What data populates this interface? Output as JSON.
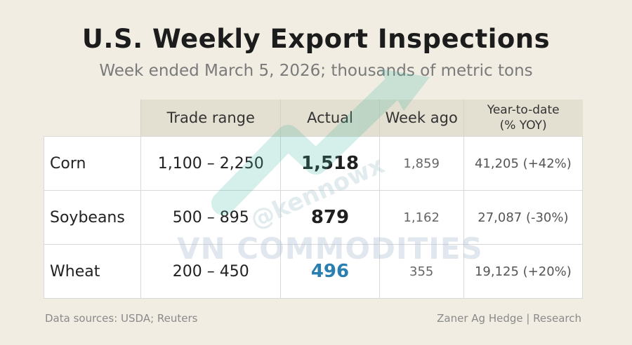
{
  "header": {
    "title": "U.S. Weekly Export Inspections",
    "subtitle": "Week ended March 5, 2026; thousands of metric tons"
  },
  "table": {
    "columns": [
      "",
      "Trade range",
      "Actual",
      "Week ago",
      "Year-to-date",
      "(% YOY)"
    ],
    "rows": [
      {
        "commodity": "Corn",
        "trade_range": "1,100 – 2,250",
        "actual": "1,518",
        "week_ago": "1,859",
        "ytd": "41,205 (+42%)"
      },
      {
        "commodity": "Soybeans",
        "trade_range": "500 – 895",
        "actual": "879",
        "week_ago": "1,162",
        "ytd": "27,087 (-30%)"
      },
      {
        "commodity": "Wheat",
        "trade_range": "200 – 450",
        "actual": "496",
        "week_ago": "355",
        "ytd": "19,125 (+20%)"
      }
    ],
    "actual_colors": [
      "#1f1f1f",
      "#1f1f1f",
      "#2a7fb0"
    ]
  },
  "watermark": {
    "text": "VN COMMODITIES",
    "handle": "@kennowx"
  },
  "footer": {
    "sources": "Data sources: USDA; Reuters",
    "credit": "Zaner Ag Hedge | Research"
  }
}
